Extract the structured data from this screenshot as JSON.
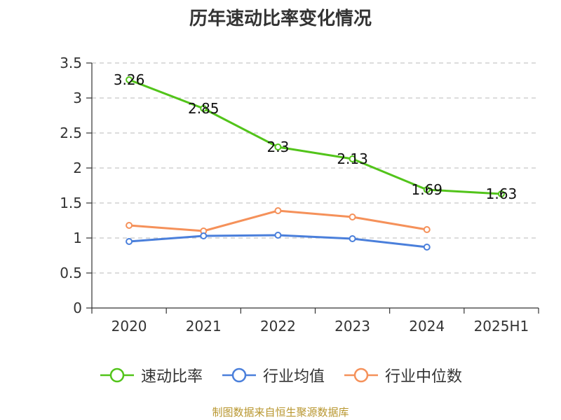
{
  "title": "历年速动比率变化情况",
  "footer": "制图数据来自恒生聚源数据库",
  "chart_data": {
    "type": "line",
    "categories": [
      "2020",
      "2021",
      "2022",
      "2023",
      "2024",
      "2025H1"
    ],
    "ylim": [
      0,
      3.5
    ],
    "yticks": [
      "0",
      "0.5",
      "1",
      "1.5",
      "2",
      "2.5",
      "3",
      "3.5"
    ],
    "grid": true,
    "legend_position": "bottom",
    "series": [
      {
        "name": "速动比率",
        "color": "#52c41a",
        "values": [
          3.26,
          2.85,
          2.3,
          2.13,
          1.69,
          1.63
        ],
        "labels": [
          "3.26",
          "2.85",
          "2.3",
          "2.13",
          "1.69",
          "1.63"
        ]
      },
      {
        "name": "行业均值",
        "color": "#4a7fdb",
        "values": [
          0.95,
          1.03,
          1.04,
          0.99,
          0.87,
          null
        ]
      },
      {
        "name": "行业中位数",
        "color": "#f5915a",
        "values": [
          1.18,
          1.1,
          1.39,
          1.3,
          1.12,
          null
        ]
      }
    ]
  }
}
